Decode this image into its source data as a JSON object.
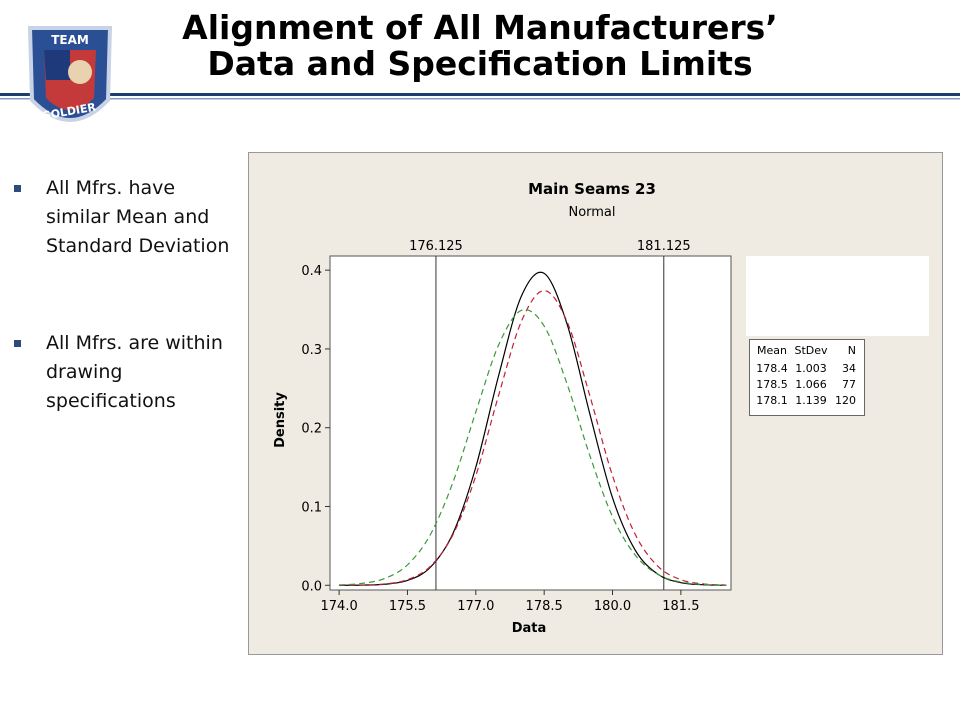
{
  "header": {
    "title_lines": [
      "Alignment of All Manufacturers’",
      "Data and Specification Limits"
    ],
    "logo": {
      "top": "TEAM",
      "bottom": "SOLDIER"
    }
  },
  "bullets": [
    "All Mfrs. have similar Mean and Standard Deviation",
    "All Mfrs. are within drawing specifications"
  ],
  "chart_data": {
    "type": "line",
    "title": "Main Seams 23",
    "subtitle": "Normal",
    "x_label": "Data",
    "y_label": "Density",
    "x": [
      174,
      174.5,
      175,
      175.5,
      176,
      176.5,
      177,
      177.5,
      178,
      178.5,
      179,
      179.5,
      180,
      180.5,
      181,
      181.5,
      182,
      182.5
    ],
    "series": [
      {
        "color": "#000000",
        "line_style": "solid",
        "values": [
          0.0,
          0.0002,
          0.0013,
          0.0061,
          0.0227,
          0.0661,
          0.15,
          0.266,
          0.367,
          0.396,
          0.332,
          0.218,
          0.111,
          0.0444,
          0.0138,
          0.0033,
          0.0006,
          0.0001
        ]
      },
      {
        "color": "#c0203a",
        "line_style": "dashed",
        "values": [
          0.0001,
          0.0003,
          0.0017,
          0.0071,
          0.0239,
          0.0644,
          0.139,
          0.241,
          0.335,
          0.374,
          0.335,
          0.241,
          0.139,
          0.0644,
          0.0239,
          0.0071,
          0.0017,
          0.0003
        ]
      },
      {
        "color": "#3a9a3a",
        "line_style": "dashed",
        "values": [
          0.0005,
          0.0024,
          0.0086,
          0.0259,
          0.064,
          0.131,
          0.22,
          0.305,
          0.349,
          0.329,
          0.256,
          0.165,
          0.0871,
          0.0381,
          0.0137,
          0.0041,
          0.001,
          0.0002
        ]
      }
    ],
    "vlines": [
      176.125,
      181.125
    ],
    "xlim": [
      173.8,
      182.6
    ],
    "ylim": [
      -0.006,
      0.418
    ],
    "xticks": [
      {
        "value": 174,
        "label": "174.0"
      },
      {
        "value": 175.5,
        "label": "175.5"
      },
      {
        "value": 177,
        "label": "177.0"
      },
      {
        "value": 178.5,
        "label": "178.5"
      },
      {
        "value": 180,
        "label": "180.0"
      },
      {
        "value": 181.5,
        "label": "181.5"
      }
    ],
    "yticks": [
      {
        "value": 0,
        "label": "0.0"
      },
      {
        "value": 0.1,
        "label": "0.1"
      },
      {
        "value": 0.2,
        "label": "0.2"
      },
      {
        "value": 0.3,
        "label": "0.3"
      },
      {
        "value": 0.4,
        "label": "0.4"
      }
    ],
    "legend_table": {
      "header": [
        "Mean",
        "StDev",
        "N"
      ],
      "rows": [
        [
          178.4,
          1.003,
          34
        ],
        [
          178.5,
          1.066,
          77
        ],
        [
          178.1,
          1.139,
          120
        ]
      ]
    }
  }
}
